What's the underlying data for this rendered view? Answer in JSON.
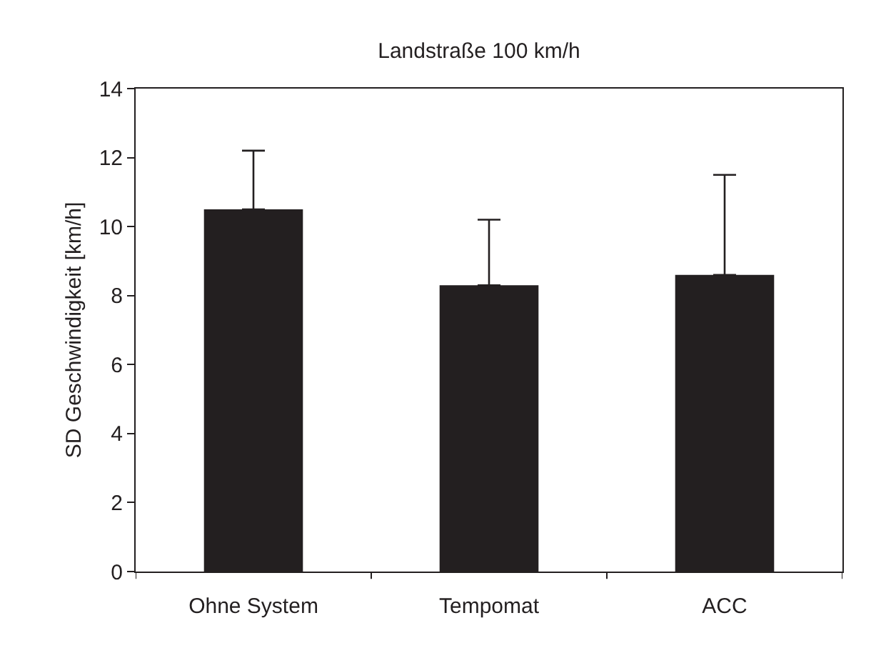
{
  "chart_data": {
    "type": "bar",
    "title": "Landstraße 100 km/h",
    "ylabel": "SD Geschwindigkeit [km/h]",
    "categories": [
      "Ohne System",
      "Tempomat",
      "ACC"
    ],
    "values": [
      10.5,
      8.3,
      8.6
    ],
    "errors": [
      [
        10.5,
        12.2
      ],
      [
        8.3,
        10.2
      ],
      [
        8.6,
        11.5
      ]
    ],
    "color": "#231f20",
    "ylim": [
      0,
      14
    ],
    "yticks": [
      0,
      2,
      4,
      6,
      8,
      10,
      12,
      14
    ],
    "grid": false,
    "legend": false
  }
}
